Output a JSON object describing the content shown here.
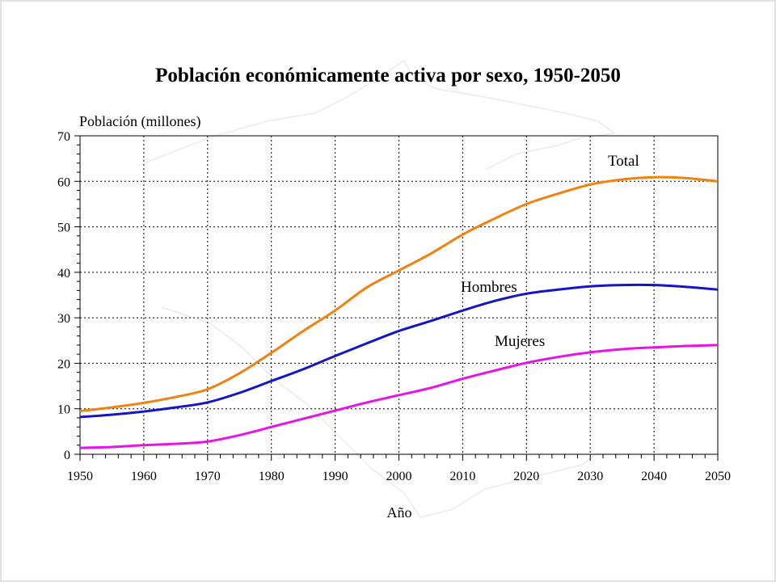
{
  "chart_data": {
    "type": "line",
    "title": "Población económicamente activa por sexo, 1950-2050",
    "ylabel": "Población (millones)",
    "xlabel": "Año",
    "xlim": [
      1950,
      2050
    ],
    "ylim": [
      0,
      70
    ],
    "x_ticks": [
      1950,
      1960,
      1970,
      1980,
      1990,
      2000,
      2010,
      2020,
      2030,
      2040,
      2050
    ],
    "y_ticks": [
      0,
      10,
      20,
      30,
      40,
      50,
      60,
      70
    ],
    "grid": true,
    "x": [
      1950,
      1955,
      1960,
      1965,
      1970,
      1975,
      1980,
      1985,
      1990,
      1995,
      2000,
      2005,
      2010,
      2015,
      2020,
      2025,
      2030,
      2035,
      2040,
      2045,
      2050
    ],
    "series": [
      {
        "name": "Total",
        "color": "#f0820f",
        "values": [
          9.5,
          10.3,
          11.3,
          12.6,
          14.3,
          17.8,
          22.3,
          27.1,
          31.6,
          36.7,
          40.4,
          44.1,
          48.3,
          51.8,
          55.0,
          57.3,
          59.3,
          60.4,
          60.9,
          60.7,
          60.0
        ]
      },
      {
        "name": "Hombres",
        "color": "#1414c8",
        "values": [
          8.2,
          8.7,
          9.4,
          10.3,
          11.4,
          13.5,
          16.1,
          18.7,
          21.6,
          24.4,
          27.1,
          29.3,
          31.6,
          33.7,
          35.3,
          36.2,
          36.9,
          37.2,
          37.2,
          36.8,
          36.2
        ]
      },
      {
        "name": "Mujeres",
        "color": "#e614e6",
        "values": [
          1.4,
          1.6,
          2.0,
          2.3,
          2.8,
          4.2,
          6.0,
          7.8,
          9.6,
          11.4,
          13.0,
          14.6,
          16.6,
          18.4,
          20.1,
          21.4,
          22.4,
          23.1,
          23.5,
          23.8,
          24.0
        ]
      }
    ]
  }
}
